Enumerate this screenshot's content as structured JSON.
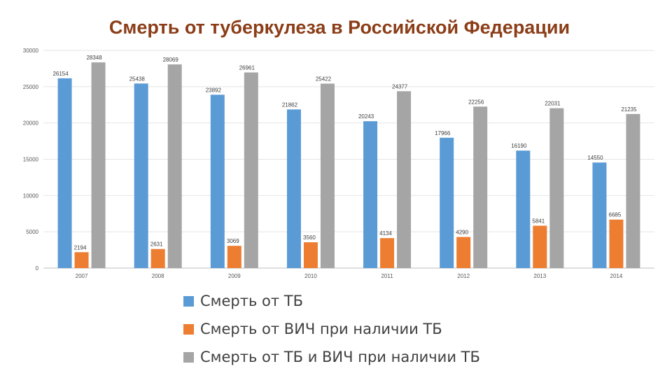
{
  "chart_data": {
    "type": "bar",
    "title": "Смерть от туберкулеза в Российской Федерации",
    "categories": [
      "2007",
      "2008",
      "2009",
      "2010",
      "2011",
      "2012",
      "2013",
      "2014"
    ],
    "series": [
      {
        "name": "Смерть от ТБ",
        "color": "#5b9bd5",
        "values": [
          26154,
          25438,
          23892,
          21862,
          20243,
          17966,
          16190,
          14550
        ]
      },
      {
        "name": "Смерть от ВИЧ при наличии ТБ",
        "color": "#ed7d31",
        "values": [
          2194,
          2631,
          3069,
          3560,
          4134,
          4290,
          5841,
          6685
        ]
      },
      {
        "name": "Смерть от ТБ и ВИЧ при наличии ТБ",
        "color": "#a5a5a5",
        "values": [
          28348,
          28069,
          26961,
          25422,
          24377,
          22256,
          22031,
          21235
        ]
      }
    ],
    "yticks": [
      "0",
      "5000",
      "10000",
      "15000",
      "20000",
      "25000",
      "30000"
    ],
    "ylim": [
      0,
      30000
    ],
    "grid": true,
    "legend": "bottom",
    "xlabel": "",
    "ylabel": ""
  }
}
